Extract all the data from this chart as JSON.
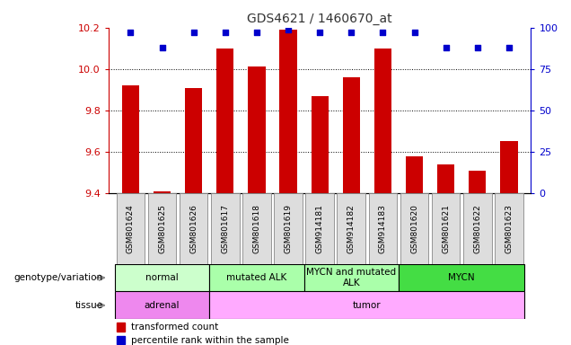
{
  "title": "GDS4621 / 1460670_at",
  "samples": [
    "GSM801624",
    "GSM801625",
    "GSM801626",
    "GSM801617",
    "GSM801618",
    "GSM801619",
    "GSM914181",
    "GSM914182",
    "GSM914183",
    "GSM801620",
    "GSM801621",
    "GSM801622",
    "GSM801623"
  ],
  "red_values": [
    9.92,
    9.41,
    9.91,
    10.1,
    10.01,
    10.19,
    9.87,
    9.96,
    10.1,
    9.58,
    9.54,
    9.51,
    9.65
  ],
  "blue_values": [
    97,
    88,
    97,
    97,
    97,
    99,
    97,
    97,
    97,
    97,
    88,
    88,
    88
  ],
  "ylim_left": [
    9.4,
    10.2
  ],
  "ylim_right": [
    0,
    100
  ],
  "yticks_left": [
    9.4,
    9.6,
    9.8,
    10.0,
    10.2
  ],
  "yticks_right": [
    0,
    25,
    50,
    75,
    100
  ],
  "grid_values": [
    9.6,
    9.8,
    10.0
  ],
  "genotype_groups": [
    {
      "label": "normal",
      "start": 0,
      "end": 3,
      "color": "#ccffcc"
    },
    {
      "label": "mutated ALK",
      "start": 3,
      "end": 6,
      "color": "#aaffaa"
    },
    {
      "label": "MYCN and mutated\nALK",
      "start": 6,
      "end": 9,
      "color": "#aaffaa"
    },
    {
      "label": "MYCN",
      "start": 9,
      "end": 13,
      "color": "#44dd44"
    }
  ],
  "tissue_groups": [
    {
      "label": "adrenal",
      "start": 0,
      "end": 3,
      "color": "#ee88ee"
    },
    {
      "label": "tumor",
      "start": 3,
      "end": 13,
      "color": "#ffaaff"
    }
  ],
  "bar_color": "#cc0000",
  "dot_color": "#0000cc",
  "bar_bottom": 9.4,
  "left_label_color": "#cc0000",
  "right_label_color": "#0000cc",
  "title_color": "#333333",
  "legend_items": [
    {
      "color": "#cc0000",
      "label": "transformed count"
    },
    {
      "color": "#0000cc",
      "label": "percentile rank within the sample"
    }
  ],
  "genotype_label": "genotype/variation",
  "tissue_label": "tissue"
}
